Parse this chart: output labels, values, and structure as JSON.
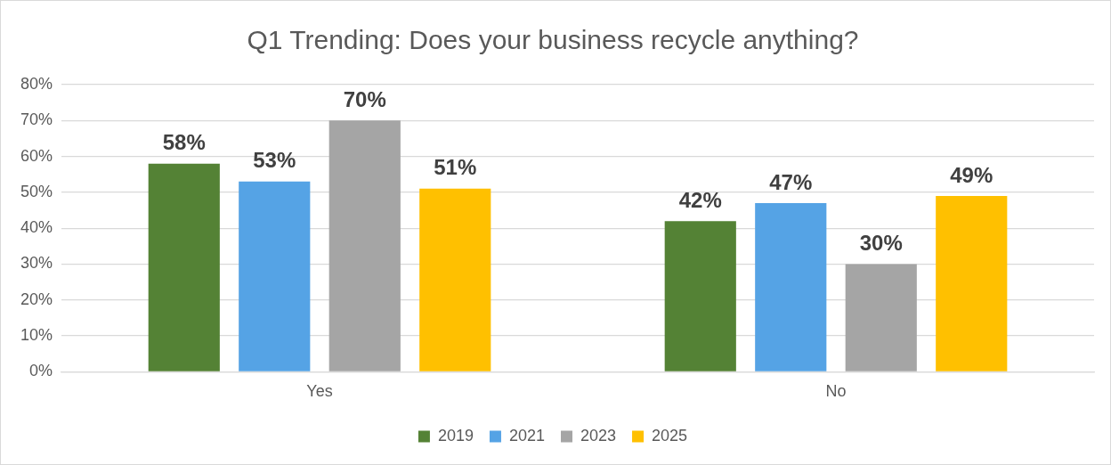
{
  "chart_data": {
    "type": "bar",
    "title": "Q1 Trending: Does your business recycle anything?",
    "categories": [
      "Yes",
      "No"
    ],
    "series": [
      {
        "name": "2019",
        "color": "#548235",
        "values": [
          58,
          42
        ],
        "value_labels": [
          "58%",
          "42%"
        ]
      },
      {
        "name": "2021",
        "color": "#55a3e5",
        "values": [
          53,
          47
        ],
        "value_labels": [
          "53%",
          "47%"
        ]
      },
      {
        "name": "2023",
        "color": "#a5a5a5",
        "values": [
          70,
          30
        ],
        "value_labels": [
          "70%",
          "30%"
        ]
      },
      {
        "name": "2025",
        "color": "#ffc000",
        "values": [
          51,
          49
        ],
        "value_labels": [
          "51%",
          "49%"
        ]
      }
    ],
    "ylim": [
      0,
      80
    ],
    "yticks": [
      {
        "value": 0,
        "label": "0%"
      },
      {
        "value": 10,
        "label": "10%"
      },
      {
        "value": 20,
        "label": "20%"
      },
      {
        "value": 30,
        "label": "30%"
      },
      {
        "value": 40,
        "label": "40%"
      },
      {
        "value": 50,
        "label": "50%"
      },
      {
        "value": 60,
        "label": "60%"
      },
      {
        "value": 70,
        "label": "70%"
      },
      {
        "value": 80,
        "label": "80%"
      }
    ],
    "grid": "y",
    "legend": "bottom"
  }
}
